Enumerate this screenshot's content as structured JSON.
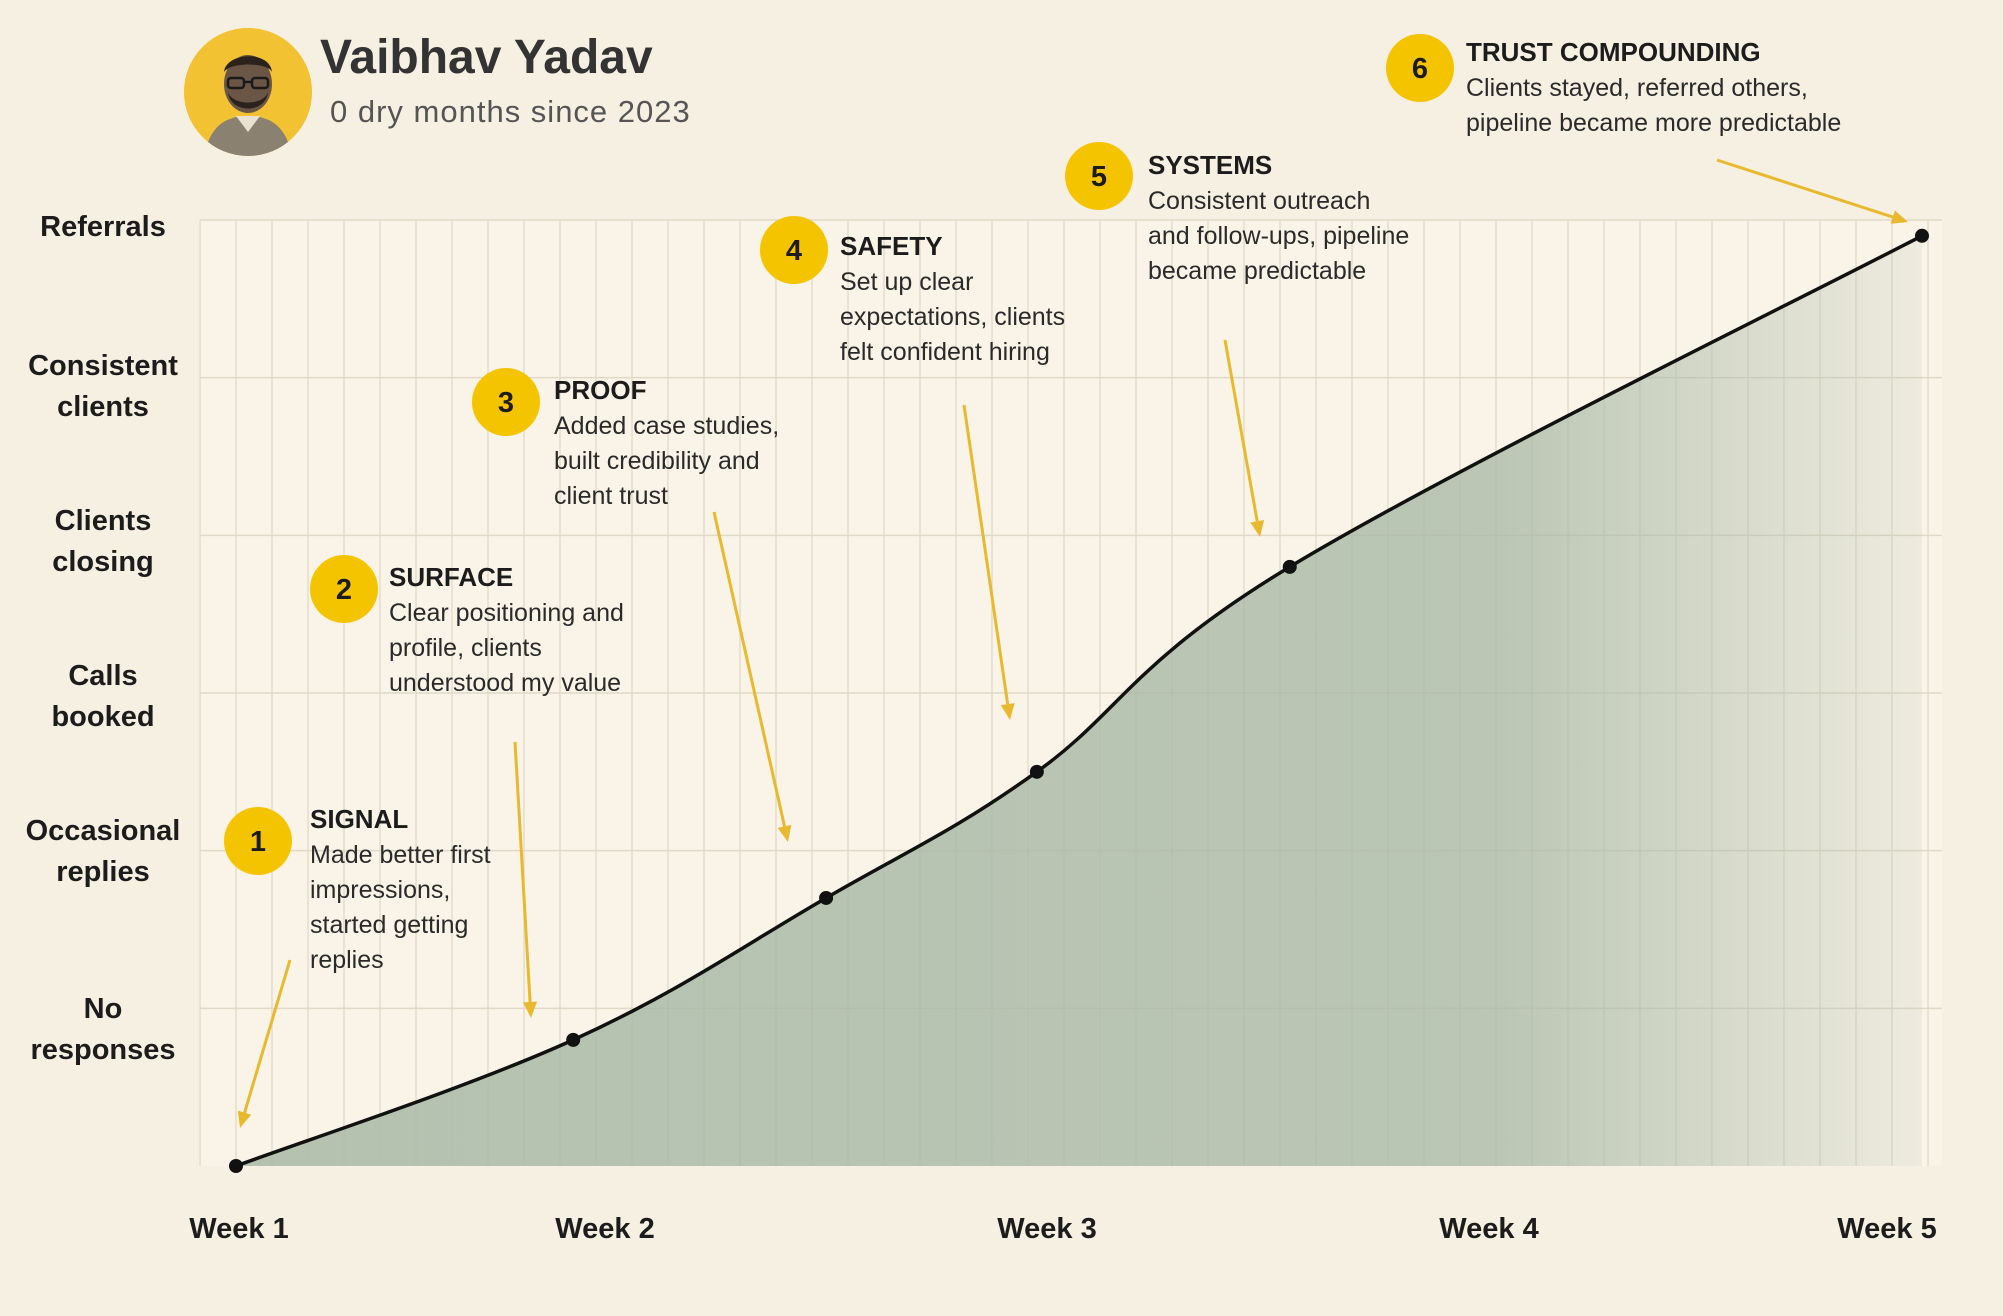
{
  "profile": {
    "name": "Vaibhav Yadav",
    "subtitle": "0 dry months since 2023"
  },
  "colors": {
    "background": "#f6f0e3",
    "accent": "#f5c400",
    "area_fill": "#a9b9a6",
    "line": "#111111",
    "arrow": "#e8b92e"
  },
  "chart_data": {
    "type": "area",
    "title": "",
    "xlabel": "",
    "ylabel": "",
    "x_ticks": [
      "Week 1",
      "Week 2",
      "Week 3",
      "Week 4",
      "Week 5"
    ],
    "y_ticks": [
      [
        "No",
        "responses"
      ],
      [
        "Occasional",
        "replies"
      ],
      [
        "Calls",
        "booked"
      ],
      [
        "Clients",
        "closing"
      ],
      [
        "Consistent",
        "clients"
      ],
      [
        "Referrals"
      ]
    ],
    "xlim": [
      1,
      5
    ],
    "ylim": [
      -1,
      5
    ],
    "grid": true,
    "series": [
      {
        "points": [
          {
            "x": 1.0,
            "y": -1.0
          },
          {
            "x": 1.8,
            "y": -0.2
          },
          {
            "x": 2.4,
            "y": 0.7
          },
          {
            "x": 2.9,
            "y": 1.5
          },
          {
            "x": 3.5,
            "y": 2.8
          },
          {
            "x": 5.0,
            "y": 4.9
          }
        ]
      }
    ],
    "annotations": [
      {
        "number": "1",
        "title": "SIGNAL",
        "lines": [
          "Made better first",
          "impressions,",
          "started getting",
          "replies"
        ],
        "point": 0
      },
      {
        "number": "2",
        "title": "SURFACE",
        "lines": [
          "Clear positioning and",
          "profile, clients",
          "understood my value"
        ],
        "point": 1
      },
      {
        "number": "3",
        "title": "PROOF",
        "lines": [
          "Added case studies,",
          "built credibility and",
          "client trust"
        ],
        "point": 2
      },
      {
        "number": "4",
        "title": "SAFETY",
        "lines": [
          "Set up clear",
          "expectations, clients",
          "felt confident hiring"
        ],
        "point": 3
      },
      {
        "number": "5",
        "title": "SYSTEMS",
        "lines": [
          "Consistent outreach",
          "and follow-ups, pipeline",
          "became predictable"
        ],
        "point": 4
      },
      {
        "number": "6",
        "title": "TRUST COMPOUNDING",
        "lines": [
          "Clients stayed, referred others,",
          "pipeline became more predictable"
        ],
        "point": 5
      }
    ]
  }
}
